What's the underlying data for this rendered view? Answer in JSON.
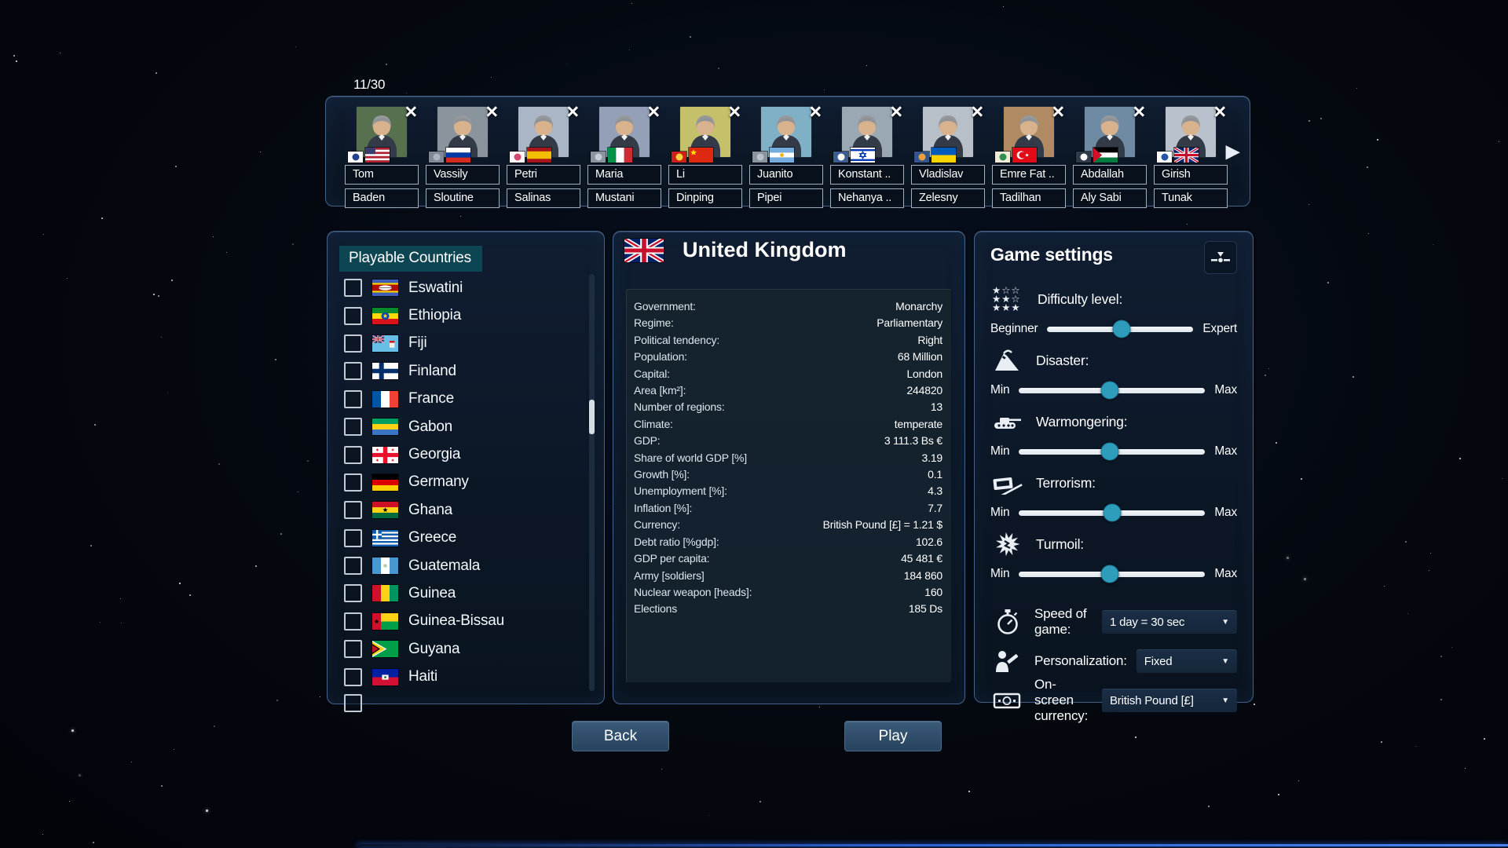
{
  "leaders_bar": {
    "counter": "11/30",
    "next_arrow": "▶",
    "leaders": [
      {
        "first": "Tom",
        "last": "Baden",
        "flag": "us",
        "party_bg": "#ffffff",
        "party_glyph": "#27408e",
        "portrait_bg": "#57714f"
      },
      {
        "first": "Vassily",
        "last": "Sloutine",
        "flag": "ru",
        "party_bg": "#7e8896",
        "party_glyph": "#aab3bf",
        "portrait_bg": "#8a949c"
      },
      {
        "first": "Petri",
        "last": "Salinas",
        "flag": "es",
        "party_bg": "#ffffff",
        "party_glyph": "#d5476c",
        "portrait_bg": "#aab6c6"
      },
      {
        "first": "Maria",
        "last": "Mustani",
        "flag": "it",
        "party_bg": "#8a93a0",
        "party_glyph": "#c6cdd4",
        "portrait_bg": "#93a0b8"
      },
      {
        "first": "Li",
        "last": "Dinping",
        "flag": "cn",
        "party_bg": "#cf2017",
        "party_glyph": "#ffd23c",
        "portrait_bg": "#c5c06a"
      },
      {
        "first": "Juanito",
        "last": "Pipei",
        "flag": "ar",
        "party_bg": "#8a93a0",
        "party_glyph": "#b8c0c9",
        "portrait_bg": "#7fb0c6"
      },
      {
        "first": "Konstant ..",
        "last": "Nehanya ..",
        "flag": "il",
        "party_bg": "#3b5d8f",
        "party_glyph": "#ffffff",
        "portrait_bg": "#9aa8b4"
      },
      {
        "first": "Vladislav",
        "last": "Zelesny",
        "flag": "ua",
        "party_bg": "#34548c",
        "party_glyph": "#e9a13b",
        "portrait_bg": "#b7c0c8"
      },
      {
        "first": "Emre Fat ..",
        "last": "Tadilhan",
        "flag": "tr",
        "party_bg": "#f0ead8",
        "party_glyph": "#2f8f4e",
        "portrait_bg": "#b08a62"
      },
      {
        "first": "Abdallah",
        "last": "Aly Sabi",
        "flag": "ps",
        "party_bg": "#2f3b4a",
        "party_glyph": "#ffffff",
        "portrait_bg": "#6e8ba3"
      },
      {
        "first": "Girish",
        "last": "Tunak",
        "flag": "gb",
        "party_bg": "#ffffff",
        "party_glyph": "#2456a4",
        "portrait_bg": "#b9c2cc"
      }
    ]
  },
  "countries_panel": {
    "title": "Playable Countries",
    "countries": [
      {
        "name": "Eswatini",
        "flag": "sz",
        "checked": false
      },
      {
        "name": "Ethiopia",
        "flag": "et",
        "checked": false
      },
      {
        "name": "Fiji",
        "flag": "fj",
        "checked": false
      },
      {
        "name": "Finland",
        "flag": "fi",
        "checked": false
      },
      {
        "name": "France",
        "flag": "fr",
        "checked": false
      },
      {
        "name": "Gabon",
        "flag": "ga",
        "checked": false
      },
      {
        "name": "Georgia",
        "flag": "ge",
        "checked": false
      },
      {
        "name": "Germany",
        "flag": "de",
        "checked": false
      },
      {
        "name": "Ghana",
        "flag": "gh",
        "checked": false
      },
      {
        "name": "Greece",
        "flag": "gr",
        "checked": false
      },
      {
        "name": "Guatemala",
        "flag": "gt",
        "checked": false
      },
      {
        "name": "Guinea",
        "flag": "gn",
        "checked": false
      },
      {
        "name": "Guinea-Bissau",
        "flag": "gw",
        "checked": false
      },
      {
        "name": "Guyana",
        "flag": "gy",
        "checked": false
      },
      {
        "name": "Haiti",
        "flag": "ht",
        "checked": false
      }
    ]
  },
  "country_panel": {
    "name": "United Kingdom",
    "flag": "gb",
    "stats": [
      {
        "label": "Government:",
        "value": "Monarchy"
      },
      {
        "label": "Regime:",
        "value": "Parliamentary"
      },
      {
        "label": "Political tendency:",
        "value": "Right"
      },
      {
        "label": "Population:",
        "value": "68 Million"
      },
      {
        "label": "Capital:",
        "value": "London"
      },
      {
        "label": "Area [km²]:",
        "value": "244820"
      },
      {
        "label": "Number of regions:",
        "value": "13"
      },
      {
        "label": "Climate:",
        "value": "temperate"
      },
      {
        "label": "GDP:",
        "value": "3 111.3 Bs €"
      },
      {
        "label": "Share of world GDP [%]",
        "value": "3.19"
      },
      {
        "label": "Growth [%]:",
        "value": "0.1"
      },
      {
        "label": "Unemployment [%]:",
        "value": "4.3"
      },
      {
        "label": "Inflation [%]:",
        "value": "7.7"
      },
      {
        "label": "Currency:",
        "value": "British Pound [£] = 1.21 $"
      },
      {
        "label": "Debt ratio [%gdp]:",
        "value": "102.6"
      },
      {
        "label": "GDP per capita:",
        "value": "45 481 €"
      },
      {
        "label": "Army [soldiers]",
        "value": "184 860"
      },
      {
        "label": "Nuclear weapon [heads]:",
        "value": "160"
      },
      {
        "label": "Elections",
        "value": "185 Ds"
      }
    ]
  },
  "settings_panel": {
    "title": "Game settings",
    "sliders": [
      {
        "label": "Difficulty level:",
        "icon": "difficulty-stars-icon",
        "min_label": "Beginner",
        "max_label": "Expert",
        "value_pct": 51
      },
      {
        "label": "Disaster:",
        "icon": "volcano-icon",
        "min_label": "Min",
        "max_label": "Max",
        "value_pct": 49
      },
      {
        "label": "Warmongering:",
        "icon": "tank-icon",
        "min_label": "Min",
        "max_label": "Max",
        "value_pct": 49
      },
      {
        "label": "Terrorism:",
        "icon": "time-bomb-icon",
        "min_label": "Min",
        "max_label": "Max",
        "value_pct": 50
      },
      {
        "label": "Turmoil:",
        "icon": "explosion-icon",
        "min_label": "Min",
        "max_label": "Max",
        "value_pct": 49
      }
    ],
    "dropdowns": [
      {
        "label": "Speed of game:",
        "icon": "stopwatch-icon",
        "value": "1 day = 30 sec"
      },
      {
        "label": "Personalization:",
        "icon": "person-edit-icon",
        "value": "Fixed"
      },
      {
        "label": "On-screen currency:",
        "icon": "banknote-icon",
        "value": "British Pound [£]"
      }
    ]
  },
  "footer": {
    "back_label": "Back",
    "play_label": "Play"
  },
  "colors": {
    "accent_teal": "#2e9dbc",
    "panel_border": "#44628a",
    "slider_track": "#e7ecf1",
    "title_chip": "#0e4a58",
    "bottom_line": "#2b5fd0",
    "panel_bg": "#0c1726"
  }
}
